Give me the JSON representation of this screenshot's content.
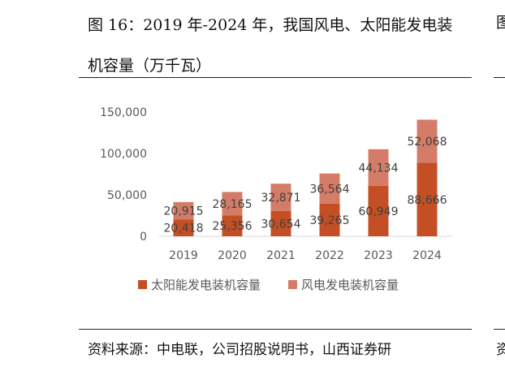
{
  "figure": {
    "title_line1": "图 16：2019 年-2024 年，我国风电、太阳能发电装",
    "title_line2": "机容量（万千瓦）",
    "source": "资料来源：中电联，公司招股说明书，山西证券研",
    "edge_glyph_top": "图",
    "edge_glyph_bottom": "资"
  },
  "colors": {
    "solar": "#C44F25",
    "wind": "#D47C67"
  },
  "chart_data": {
    "type": "bar",
    "stacked": true,
    "categories": [
      "2019",
      "2020",
      "2021",
      "2022",
      "2023",
      "2024"
    ],
    "series": [
      {
        "name": "太阳能发电装机容量",
        "values": [
          20418,
          25356,
          30654,
          39265,
          60949,
          88666
        ]
      },
      {
        "name": "风电发电装机容量",
        "values": [
          20915,
          28165,
          32871,
          36564,
          44134,
          52068
        ]
      }
    ],
    "data_labels": {
      "solar": [
        "20,418",
        "25,356",
        "30,654",
        "39,265",
        "60,949",
        "88,666"
      ],
      "wind": [
        "20,915",
        "28,165",
        "32,871",
        "36,564",
        "44,134",
        "52,068"
      ]
    },
    "yticks": [
      0,
      50000,
      100000,
      150000
    ],
    "ytick_labels": [
      "0",
      "50,000",
      "100,000",
      "150,000"
    ],
    "ylim": [
      0,
      150000
    ],
    "grid": false,
    "legend_position": "bottom"
  }
}
